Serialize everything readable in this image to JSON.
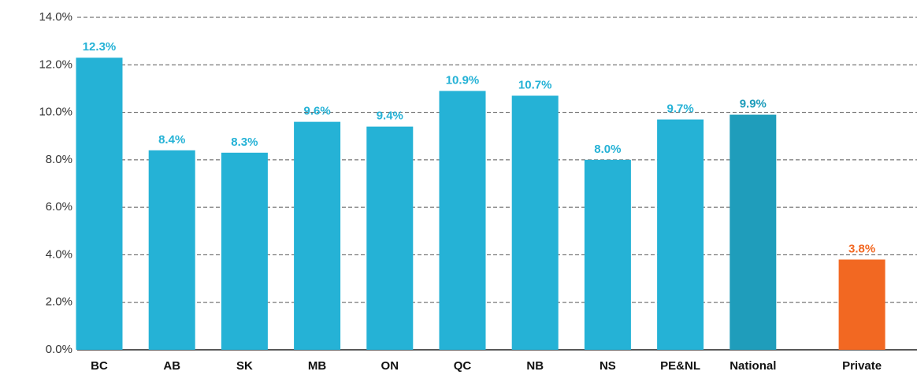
{
  "chart_data": {
    "type": "bar",
    "categories": [
      "BC",
      "AB",
      "SK",
      "MB",
      "ON",
      "QC",
      "NB",
      "NS",
      "PE&NL",
      "National",
      "Private"
    ],
    "values": [
      12.3,
      8.4,
      8.3,
      9.6,
      9.4,
      10.9,
      10.7,
      8.0,
      9.7,
      9.9,
      3.8
    ],
    "value_labels": [
      "12.3%",
      "8.4%",
      "8.3%",
      "9.6%",
      "9.4%",
      "10.9%",
      "10.7%",
      "8.0%",
      "9.7%",
      "9.9%",
      "3.8%"
    ],
    "colors": [
      "#25b2d6",
      "#25b2d6",
      "#25b2d6",
      "#25b2d6",
      "#25b2d6",
      "#25b2d6",
      "#25b2d6",
      "#25b2d6",
      "#25b2d6",
      "#1f9dbb",
      "#f26822"
    ],
    "ylim": [
      0,
      14
    ],
    "yticks": [
      {
        "value": 0,
        "label": "0.0%"
      },
      {
        "value": 2,
        "label": "2.0%"
      },
      {
        "value": 4,
        "label": "4.0%"
      },
      {
        "value": 6,
        "label": "6.0%"
      },
      {
        "value": 8,
        "label": "8.0%"
      },
      {
        "value": 10,
        "label": "10.0%"
      },
      {
        "value": 12,
        "label": "12.0%"
      },
      {
        "value": 14,
        "label": "14.0%"
      }
    ],
    "grid": true
  }
}
